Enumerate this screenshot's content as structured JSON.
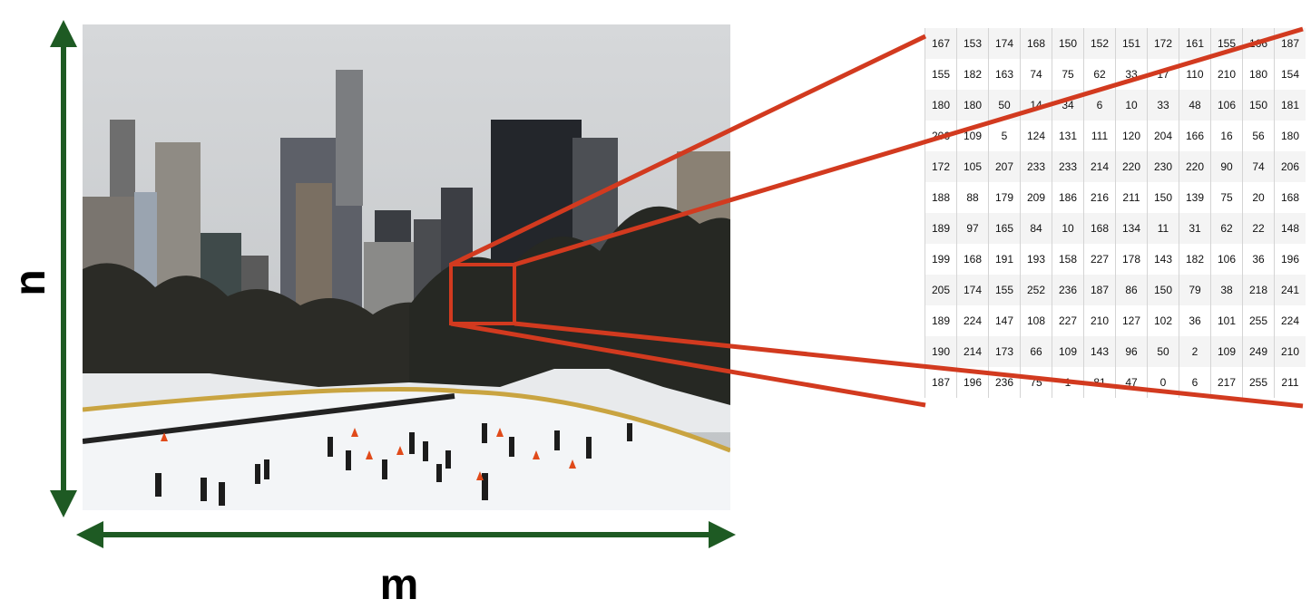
{
  "labels": {
    "n": "n",
    "m": "m"
  },
  "pixel_values": [
    [
      167,
      153,
      174,
      168,
      150,
      152,
      151,
      172,
      161,
      155,
      166,
      187
    ],
    [
      155,
      182,
      163,
      74,
      75,
      62,
      33,
      17,
      110,
      210,
      180,
      154
    ],
    [
      180,
      180,
      50,
      14,
      34,
      6,
      10,
      33,
      48,
      106,
      150,
      181
    ],
    [
      206,
      109,
      5,
      124,
      131,
      111,
      120,
      204,
      166,
      16,
      56,
      180
    ],
    [
      172,
      105,
      207,
      233,
      233,
      214,
      220,
      230,
      220,
      90,
      74,
      206
    ],
    [
      188,
      88,
      179,
      209,
      186,
      216,
      211,
      150,
      139,
      75,
      20,
      168
    ],
    [
      189,
      97,
      165,
      84,
      10,
      168,
      134,
      11,
      31,
      62,
      22,
      148
    ],
    [
      199,
      168,
      191,
      193,
      158,
      227,
      178,
      143,
      182,
      106,
      36,
      196
    ],
    [
      205,
      174,
      155,
      252,
      236,
      187,
      86,
      150,
      79,
      38,
      218,
      241
    ],
    [
      189,
      224,
      147,
      108,
      227,
      210,
      127,
      102,
      36,
      101,
      255,
      224
    ],
    [
      190,
      214,
      173,
      66,
      109,
      143,
      96,
      50,
      2,
      109,
      249,
      210
    ],
    [
      187,
      196,
      236,
      75,
      1,
      81,
      47,
      0,
      6,
      217,
      255,
      211
    ]
  ],
  "colors": {
    "arrow": "#1e5a23",
    "zoom_lines": "#d23a1f"
  }
}
